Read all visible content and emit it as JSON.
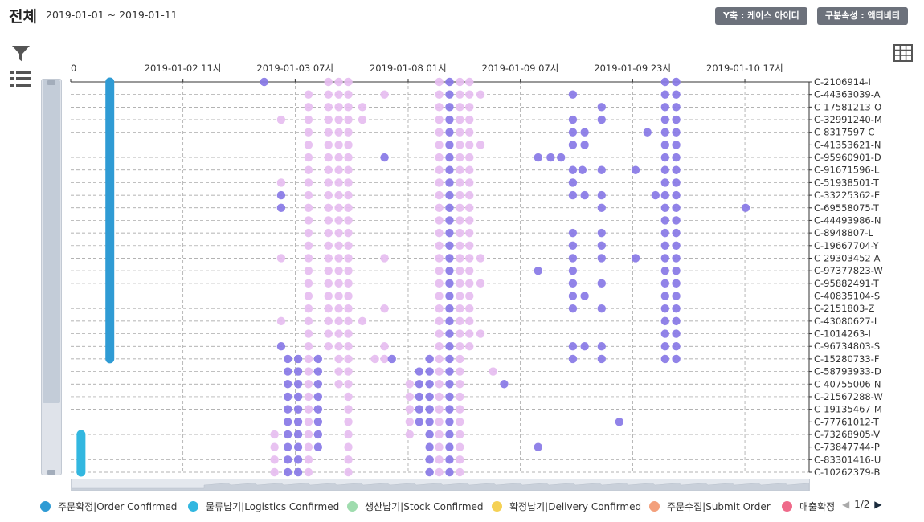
{
  "header": {
    "title": "전체",
    "date_range": "2019-01-01 ~ 2019-01-11",
    "y_axis_button": "Y축 : 케이스 아이디",
    "attr_button": "구분속성 : 액티비티"
  },
  "legend": {
    "items": [
      {
        "label": "주문확정|Order Confirmed",
        "color": "#2f9bd4"
      },
      {
        "label": "물류납기|Logistics Confirmed",
        "color": "#32b7e0"
      },
      {
        "label": "생산납기|Stock Confirmed",
        "color": "#9fdcae"
      },
      {
        "label": "확정납기|Delivery Confirmed",
        "color": "#f5d155"
      },
      {
        "label": "주문수집|Submit Order",
        "color": "#f3a07c"
      },
      {
        "label": "매출확정",
        "color": "#ef6a8a"
      }
    ],
    "page": "1/2"
  },
  "chart_data": {
    "type": "scatter",
    "x_tick_labels": [
      "0",
      "2019-01-02 11시",
      "2019-01-03 07시",
      "2019-01-08 01시",
      "2019-01-09 07시",
      "2019-01-09 23시",
      "2019-01-10 17시"
    ],
    "case_ids": [
      "C-2106914-I",
      "C-44363039-A",
      "C-17581213-O",
      "C-32991240-M",
      "C-8317597-C",
      "C-41353621-N",
      "C-95960901-D",
      "C-91671596-L",
      "C-51938501-T",
      "C-33225362-E",
      "C-69558075-T",
      "C-44493986-N",
      "C-8948807-L",
      "C-19667704-Y",
      "C-29303452-A",
      "C-97377823-W",
      "C-95882491-T",
      "C-40835104-S",
      "C-2151803-Z",
      "C-43080627-I",
      "C-1014263-I",
      "C-96734803-S",
      "C-15280733-F",
      "C-58793933-D",
      "C-40755006-N",
      "C-21567288-W",
      "C-19135467-M",
      "C-77761012-T",
      "C-73268905-V",
      "C-73847744-P",
      "C-83301416-U",
      "C-10262379-B"
    ],
    "grid": true,
    "colors": {
      "order": "#2f9bd4",
      "logistics": "#32b7e0",
      "pink": "#e6bdf0",
      "purple": "#8878e6"
    },
    "series": [
      {
        "name": "주문확정|Order Confirmed",
        "x": 0.053,
        "case_from": 0,
        "case_to": 22
      },
      {
        "name": "물류납기|Logistics Confirmed",
        "x": 0.014,
        "case_from": 28,
        "case_to": 31
      }
    ],
    "dot_columns": [
      {
        "x": 0.276,
        "color": "pink",
        "case_from": 28,
        "case_to": 31
      },
      {
        "x": 0.294,
        "color": "purple",
        "case_from": 22,
        "case_to": 31
      },
      {
        "x": 0.308,
        "color": "purple",
        "case_from": 22,
        "case_to": 31
      },
      {
        "x": 0.322,
        "color": "pink",
        "case_from": 1,
        "case_to": 31
      },
      {
        "x": 0.335,
        "color": "purple",
        "case_from": 22,
        "case_to": 29
      },
      {
        "x": 0.349,
        "color": "pink",
        "case_from": 0,
        "case_to": 21
      },
      {
        "x": 0.363,
        "color": "pink",
        "case_from": 0,
        "case_to": 24
      },
      {
        "x": 0.376,
        "color": "pink",
        "case_from": 0,
        "case_to": 31
      },
      {
        "x": 0.459,
        "color": "pink",
        "case_from": 24,
        "case_to": 28
      },
      {
        "x": 0.472,
        "color": "purple",
        "case_from": 23,
        "case_to": 27
      },
      {
        "x": 0.486,
        "color": "purple",
        "case_from": 22,
        "case_to": 31
      },
      {
        "x": 0.499,
        "color": "pink",
        "case_from": 0,
        "case_to": 31
      },
      {
        "x": 0.513,
        "color": "purple",
        "case_from": 0,
        "case_to": 31
      },
      {
        "x": 0.527,
        "color": "pink",
        "case_from": 0,
        "case_to": 31
      },
      {
        "x": 0.54,
        "color": "pink",
        "case_from": 0,
        "case_to": 21
      },
      {
        "x": 0.805,
        "color": "purple",
        "case_from": 0,
        "case_to": 22
      },
      {
        "x": 0.82,
        "color": "purple",
        "case_from": 0,
        "case_to": 22
      }
    ],
    "scattered_points": [
      {
        "x": 0.262,
        "case": 0,
        "color": "purple"
      },
      {
        "x": 0.285,
        "case": 3,
        "color": "pink"
      },
      {
        "x": 0.285,
        "case": 8,
        "color": "pink"
      },
      {
        "x": 0.285,
        "case": 9,
        "color": "purple"
      },
      {
        "x": 0.285,
        "case": 10,
        "color": "purple"
      },
      {
        "x": 0.285,
        "case": 14,
        "color": "pink"
      },
      {
        "x": 0.285,
        "case": 19,
        "color": "pink"
      },
      {
        "x": 0.285,
        "case": 21,
        "color": "purple"
      },
      {
        "x": 0.395,
        "case": 2,
        "color": "pink"
      },
      {
        "x": 0.395,
        "case": 3,
        "color": "pink"
      },
      {
        "x": 0.395,
        "case": 19,
        "color": "pink"
      },
      {
        "x": 0.425,
        "case": 1,
        "color": "pink"
      },
      {
        "x": 0.425,
        "case": 6,
        "color": "purple"
      },
      {
        "x": 0.425,
        "case": 14,
        "color": "pink"
      },
      {
        "x": 0.425,
        "case": 18,
        "color": "pink"
      },
      {
        "x": 0.425,
        "case": 21,
        "color": "pink"
      },
      {
        "x": 0.425,
        "case": 22,
        "color": "pink"
      },
      {
        "x": 0.412,
        "case": 22,
        "color": "pink"
      },
      {
        "x": 0.435,
        "case": 22,
        "color": "purple"
      },
      {
        "x": 0.555,
        "case": 1,
        "color": "pink"
      },
      {
        "x": 0.555,
        "case": 5,
        "color": "pink"
      },
      {
        "x": 0.555,
        "case": 14,
        "color": "pink"
      },
      {
        "x": 0.555,
        "case": 16,
        "color": "pink"
      },
      {
        "x": 0.555,
        "case": 20,
        "color": "pink"
      },
      {
        "x": 0.572,
        "case": 23,
        "color": "pink"
      },
      {
        "x": 0.587,
        "case": 24,
        "color": "purple"
      },
      {
        "x": 0.633,
        "case": 6,
        "color": "purple"
      },
      {
        "x": 0.633,
        "case": 15,
        "color": "purple"
      },
      {
        "x": 0.633,
        "case": 29,
        "color": "purple"
      },
      {
        "x": 0.65,
        "case": 6,
        "color": "purple"
      },
      {
        "x": 0.664,
        "case": 6,
        "color": "purple"
      },
      {
        "x": 0.68,
        "case": 1,
        "color": "purple"
      },
      {
        "x": 0.68,
        "case": 3,
        "color": "purple"
      },
      {
        "x": 0.68,
        "case": 4,
        "color": "purple"
      },
      {
        "x": 0.68,
        "case": 5,
        "color": "purple"
      },
      {
        "x": 0.68,
        "case": 7,
        "color": "purple"
      },
      {
        "x": 0.68,
        "case": 8,
        "color": "purple"
      },
      {
        "x": 0.68,
        "case": 9,
        "color": "purple"
      },
      {
        "x": 0.68,
        "case": 12,
        "color": "purple"
      },
      {
        "x": 0.68,
        "case": 13,
        "color": "purple"
      },
      {
        "x": 0.68,
        "case": 14,
        "color": "purple"
      },
      {
        "x": 0.68,
        "case": 15,
        "color": "purple"
      },
      {
        "x": 0.68,
        "case": 16,
        "color": "purple"
      },
      {
        "x": 0.68,
        "case": 17,
        "color": "purple"
      },
      {
        "x": 0.68,
        "case": 18,
        "color": "purple"
      },
      {
        "x": 0.68,
        "case": 21,
        "color": "purple"
      },
      {
        "x": 0.68,
        "case": 22,
        "color": "purple"
      },
      {
        "x": 0.696,
        "case": 4,
        "color": "purple"
      },
      {
        "x": 0.696,
        "case": 5,
        "color": "purple"
      },
      {
        "x": 0.696,
        "case": 9,
        "color": "purple"
      },
      {
        "x": 0.696,
        "case": 17,
        "color": "purple"
      },
      {
        "x": 0.696,
        "case": 21,
        "color": "purple"
      },
      {
        "x": 0.719,
        "case": 2,
        "color": "purple"
      },
      {
        "x": 0.719,
        "case": 3,
        "color": "purple"
      },
      {
        "x": 0.719,
        "case": 7,
        "color": "purple"
      },
      {
        "x": 0.719,
        "case": 9,
        "color": "purple"
      },
      {
        "x": 0.719,
        "case": 10,
        "color": "purple"
      },
      {
        "x": 0.719,
        "case": 12,
        "color": "purple"
      },
      {
        "x": 0.719,
        "case": 13,
        "color": "purple"
      },
      {
        "x": 0.719,
        "case": 14,
        "color": "purple"
      },
      {
        "x": 0.719,
        "case": 16,
        "color": "purple"
      },
      {
        "x": 0.719,
        "case": 18,
        "color": "purple"
      },
      {
        "x": 0.719,
        "case": 21,
        "color": "purple"
      },
      {
        "x": 0.719,
        "case": 22,
        "color": "purple"
      },
      {
        "x": 0.693,
        "case": 7,
        "color": "purple"
      },
      {
        "x": 0.743,
        "case": 27,
        "color": "purple"
      },
      {
        "x": 0.765,
        "case": 7,
        "color": "purple"
      },
      {
        "x": 0.765,
        "case": 14,
        "color": "purple"
      },
      {
        "x": 0.781,
        "case": 4,
        "color": "purple"
      },
      {
        "x": 0.914,
        "case": 10,
        "color": "purple"
      },
      {
        "x": 0.792,
        "case": 9,
        "color": "purple"
      }
    ]
  }
}
